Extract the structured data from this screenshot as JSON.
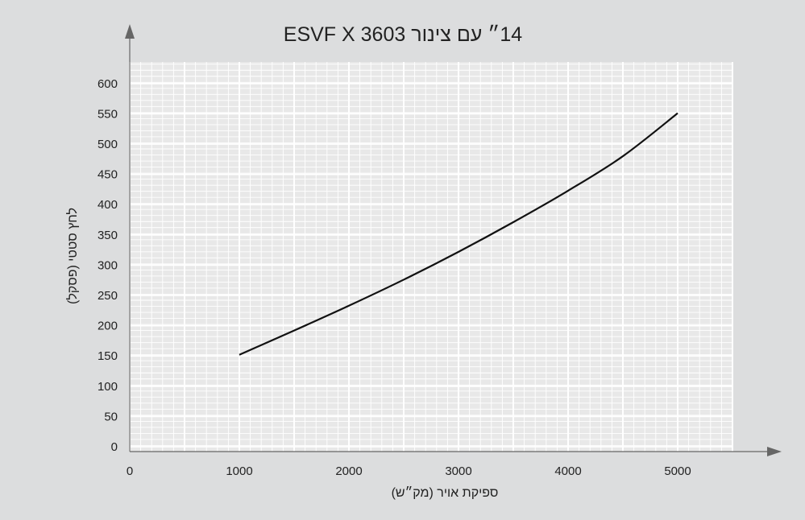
{
  "chart_data": {
    "type": "line",
    "title": "14״ עם צינור ESVF X 3603",
    "xlabel": "ספיקת אויר (מק״ש)",
    "ylabel": "לחץ סטטי (פסקל)",
    "x_ticks": [
      "0",
      "1000",
      "2000",
      "3000",
      "4000",
      "5000"
    ],
    "y_ticks": [
      "0",
      "50",
      "100",
      "150",
      "200",
      "250",
      "300",
      "350",
      "400",
      "450",
      "500",
      "550",
      "600"
    ],
    "xlim": [
      0,
      5500
    ],
    "ylim": [
      0,
      630
    ],
    "grid": true,
    "series": [
      {
        "x": [
          1000,
          1500,
          2000,
          2500,
          3000,
          3500,
          4000,
          4500,
          5000
        ],
        "y": [
          152,
          192,
          233,
          276,
          322,
          371,
          423,
          480,
          551
        ]
      }
    ],
    "colors": {
      "background": "#dcddde",
      "plot_area": "#e8e8e8",
      "grid_minor": "#ffffff",
      "grid_major": "#ffffff",
      "line": "#111111",
      "axis": "#666666"
    }
  }
}
